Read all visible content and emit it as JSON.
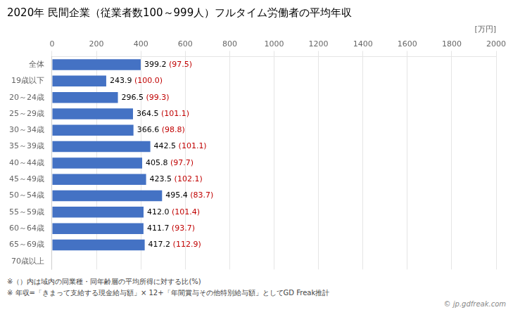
{
  "chart_data": {
    "type": "bar",
    "orientation": "horizontal",
    "title": "2020年 民間企業（従業者数100～999人）フルタイム労働者の平均年収",
    "xlabel": "[万円]",
    "categories": [
      "全体",
      "19歳以下",
      "20～24歳",
      "25～29歳",
      "30～34歳",
      "35～39歳",
      "40～44歳",
      "45～49歳",
      "50～54歳",
      "55～59歳",
      "60～64歳",
      "65～69歳",
      "70歳以上"
    ],
    "values": [
      399.2,
      243.9,
      296.5,
      364.5,
      366.6,
      442.5,
      405.8,
      423.5,
      495.4,
      412.0,
      411.7,
      417.2,
      0
    ],
    "value_labels": [
      "399.2",
      "243.9",
      "296.5",
      "364.5",
      "366.6",
      "442.5",
      "405.8",
      "423.5",
      "495.4",
      "412.0",
      "411.7",
      "417.2",
      null
    ],
    "data_labels": true,
    "ratio_labels": {
      "labels": [
        "(97.5)",
        "(100.0)",
        "(99.3)",
        "(101.1)",
        "(98.8)",
        "(101.1)",
        "(97.7)",
        "(102.1)",
        "(83.7)",
        "(101.4)",
        "(93.7)",
        "(112.9)",
        null
      ],
      "color": "#C00000"
    },
    "color": "#4472C4",
    "xlim": [
      0,
      2000
    ],
    "xticks": [
      0,
      200,
      400,
      600,
      800,
      1000,
      1200,
      1400,
      1600,
      1800,
      2000
    ],
    "grid": true,
    "annotations": [
      {
        "text": "※（）内は域内の同業種・同年齢層の平均所得に対する比(%)"
      },
      {
        "text": "※ 年収=「きまって支給する現金給与額」× 12+「年間賞与その他特別給与額」としてGD Freak推計"
      },
      {
        "text": "© jp.gdfreak.com"
      }
    ]
  }
}
